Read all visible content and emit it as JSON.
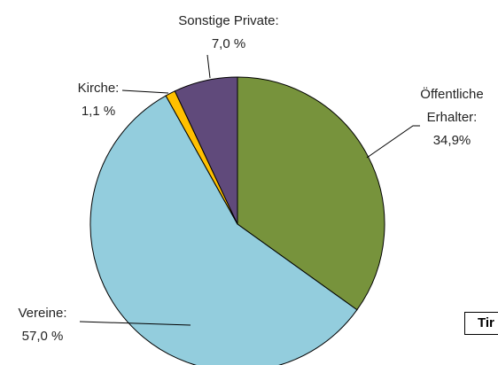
{
  "chart_data": {
    "type": "pie",
    "categories": [
      "Öffentliche Erhalter:",
      "Vereine:",
      "Kirche:",
      "Sonstige Private:"
    ],
    "values": [
      34.9,
      57.0,
      1.1,
      7.0
    ],
    "value_labels": [
      "34,9%",
      "57,0 %",
      "1,1 %",
      "7,0 %"
    ],
    "colors": [
      "#77933c",
      "#93cddd",
      "#ffc000",
      "#604a7b"
    ],
    "annotation": "Tir"
  }
}
